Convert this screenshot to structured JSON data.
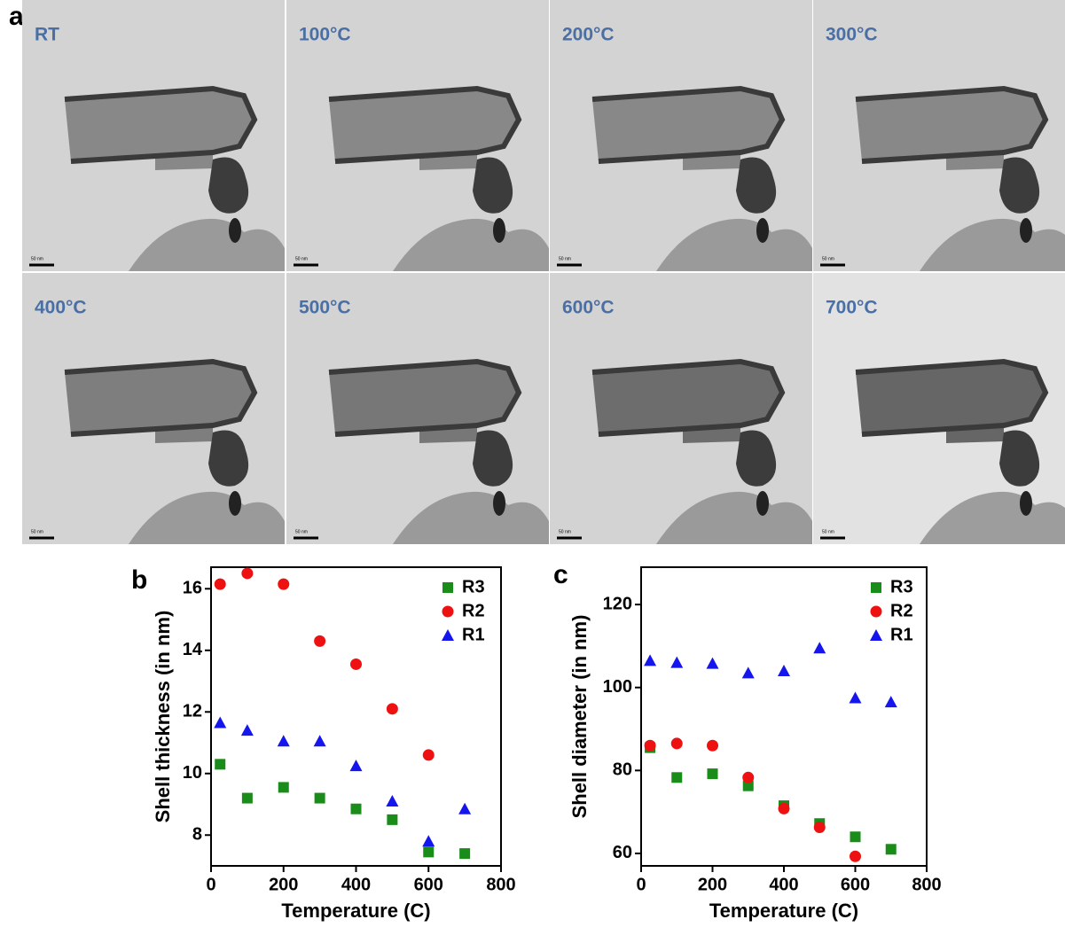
{
  "panel_labels": [
    "a",
    "b",
    "c"
  ],
  "micrographs": [
    {
      "label": "RT",
      "scale_bar": "50 nm"
    },
    {
      "label": "100°C",
      "scale_bar": "50 nm"
    },
    {
      "label": "200°C",
      "scale_bar": "50 nm"
    },
    {
      "label": "300°C",
      "scale_bar": "50 nm"
    },
    {
      "label": "400°C",
      "scale_bar": "50 nm"
    },
    {
      "label": "500°C",
      "scale_bar": "50 nm"
    },
    {
      "label": "600°C",
      "scale_bar": "50 nm"
    },
    {
      "label": "700°C",
      "scale_bar": "50 nm"
    }
  ],
  "chart_data": [
    {
      "type": "scatter",
      "x_label": "Temperature (C)",
      "y_label": "Shell thickness (in nm)",
      "x": [
        25,
        100,
        200,
        300,
        400,
        500,
        600,
        700
      ],
      "series": [
        {
          "name": "R3",
          "color": "#1a8c1a",
          "marker": "square",
          "values": [
            10.3,
            9.2,
            9.55,
            9.2,
            8.85,
            8.5,
            7.45,
            7.4
          ]
        },
        {
          "name": "R2",
          "color": "#ee1111",
          "marker": "circle",
          "values": [
            16.15,
            16.5,
            16.15,
            14.3,
            13.55,
            12.1,
            10.6,
            null
          ]
        },
        {
          "name": "R1",
          "color": "#1515ee",
          "marker": "triangle",
          "values": [
            11.65,
            11.4,
            11.05,
            11.05,
            10.25,
            9.1,
            7.8,
            8.85
          ]
        }
      ],
      "xlim": [
        0,
        800
      ],
      "xticks": [
        0,
        200,
        400,
        600,
        800
      ],
      "ylim": [
        7,
        16.7
      ],
      "yticks": [
        8,
        10,
        12,
        14,
        16
      ]
    },
    {
      "type": "scatter",
      "x_label": "Temperature (C)",
      "y_label": "Shell diameter (in nm)",
      "x": [
        25,
        100,
        200,
        300,
        400,
        500,
        600,
        700
      ],
      "series": [
        {
          "name": "R3",
          "color": "#1a8c1a",
          "marker": "square",
          "values": [
            85.5,
            78.3,
            79.2,
            76.3,
            71.5,
            67.2,
            64,
            61
          ]
        },
        {
          "name": "R2",
          "color": "#ee1111",
          "marker": "circle",
          "values": [
            86,
            86.5,
            86,
            78.3,
            70.8,
            66.3,
            59.3,
            null
          ]
        },
        {
          "name": "R1",
          "color": "#1515ee",
          "marker": "triangle",
          "values": [
            106.5,
            106,
            105.8,
            103.5,
            104,
            109.5,
            97.5,
            96.5
          ]
        }
      ],
      "xlim": [
        0,
        800
      ],
      "xticks": [
        0,
        200,
        400,
        600,
        800
      ],
      "ylim": [
        57,
        129
      ],
      "yticks": [
        60,
        80,
        100,
        120
      ]
    }
  ]
}
